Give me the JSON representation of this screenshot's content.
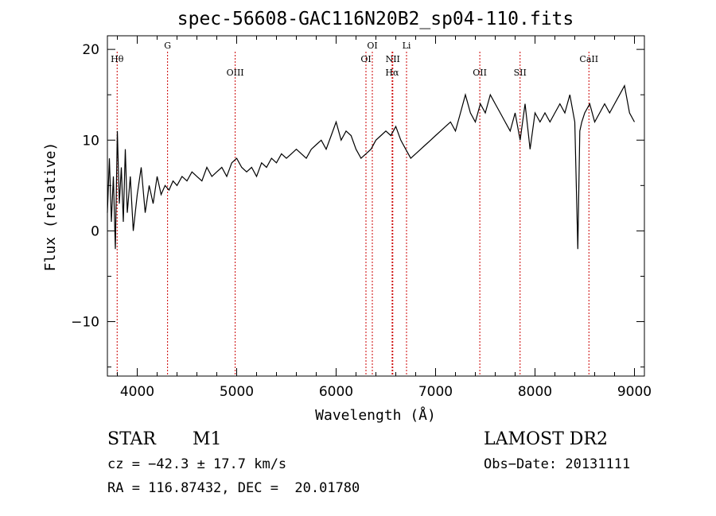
{
  "chart_data": {
    "type": "line",
    "title": "spec-56608-GAC116N20B2_sp04-110.fits",
    "xlabel": "Wavelength (Å)",
    "ylabel": "Flux (relative)",
    "xlim": [
      3700,
      9100
    ],
    "ylim": [
      -16,
      21.5
    ],
    "xticks": [
      4000,
      5000,
      6000,
      7000,
      8000,
      9000
    ],
    "xtick_labels": [
      "4000",
      "5000",
      "6000",
      "7000",
      "8000",
      "9000"
    ],
    "yticks": [
      -10,
      0,
      10,
      20
    ],
    "ytick_labels": [
      "−10",
      "0",
      "10",
      "20"
    ],
    "line_color": "#000000",
    "marker_color": "#cc0000",
    "series": [
      {
        "x": [
          3700,
          3720,
          3740,
          3760,
          3780,
          3800,
          3820,
          3840,
          3860,
          3880,
          3900,
          3930,
          3960,
          4000,
          4040,
          4080,
          4120,
          4160,
          4200,
          4240,
          4280,
          4320,
          4360,
          4400,
          4450,
          4500,
          4550,
          4600,
          4650,
          4700,
          4750,
          4800,
          4850,
          4900,
          4950,
          5000,
          5050,
          5100,
          5150,
          5200,
          5250,
          5300,
          5350,
          5400,
          5450,
          5500,
          5550,
          5600,
          5650,
          5700,
          5750,
          5800,
          5850,
          5900,
          5950,
          6000,
          6050,
          6100,
          6150,
          6200,
          6250,
          6300,
          6350,
          6400,
          6450,
          6500,
          6550,
          6600,
          6650,
          6700,
          6750,
          6800,
          6850,
          6900,
          6950,
          7000,
          7050,
          7100,
          7150,
          7200,
          7250,
          7300,
          7350,
          7400,
          7450,
          7500,
          7550,
          7600,
          7650,
          7700,
          7750,
          7800,
          7850,
          7900,
          7950,
          8000,
          8050,
          8100,
          8150,
          8200,
          8250,
          8300,
          8350,
          8400,
          8430,
          8450,
          8470,
          8500,
          8550,
          8600,
          8650,
          8700,
          8750,
          8800,
          8850,
          8900,
          8950,
          9000
        ],
        "y": [
          2,
          8,
          1,
          6,
          -2,
          11,
          3,
          7,
          1,
          9,
          2,
          6,
          0,
          4,
          7,
          2,
          5,
          3,
          6,
          4,
          5,
          4.5,
          5.5,
          5,
          6,
          5.5,
          6.5,
          6,
          5.5,
          7,
          6,
          6.5,
          7,
          6,
          7.5,
          8,
          7,
          6.5,
          7,
          6,
          7.5,
          7,
          8,
          7.5,
          8.5,
          8,
          8.5,
          9,
          8.5,
          8,
          9,
          9.5,
          10,
          9,
          10.5,
          12,
          10,
          11,
          10.5,
          9,
          8,
          8.5,
          9,
          10,
          10.5,
          11,
          10.5,
          11.5,
          10,
          9,
          8,
          8.5,
          9,
          9.5,
          10,
          10.5,
          11,
          11.5,
          12,
          11,
          13,
          15,
          13,
          12,
          14,
          13,
          15,
          14,
          13,
          12,
          11,
          13,
          10,
          14,
          9,
          13,
          12,
          13,
          12,
          13,
          14,
          13,
          15,
          12,
          -2,
          11,
          12,
          13,
          14,
          12,
          13,
          14,
          13,
          14,
          15,
          16,
          13,
          12
        ]
      }
    ],
    "line_markers": [
      {
        "label": "Hθ",
        "x": 3798,
        "row": 1
      },
      {
        "label": "G",
        "x": 4305,
        "row": 0
      },
      {
        "label": "OIII",
        "x": 4985,
        "row": 2
      },
      {
        "label": "OI",
        "x": 6300,
        "row": 1
      },
      {
        "label": "OI",
        "x": 6364,
        "row": 0
      },
      {
        "label": "NII",
        "x": 6570,
        "row": 1
      },
      {
        "label": "Hα",
        "x": 6563,
        "row": 2
      },
      {
        "label": "Li",
        "x": 6708,
        "row": 0
      },
      {
        "label": "OII",
        "x": 7445,
        "row": 2
      },
      {
        "label": "SII",
        "x": 7850,
        "row": 2
      },
      {
        "label": "CaII",
        "x": 8542,
        "row": 1
      }
    ]
  },
  "info": {
    "object_class": "STAR",
    "subclass": "M1",
    "survey": "LAMOST DR2",
    "velocity": "cz = −42.3 ± 17.7 km/s",
    "obs_date": "Obs−Date: 20131111",
    "coords": "RA = 116.87432, DEC =  20.01780"
  }
}
